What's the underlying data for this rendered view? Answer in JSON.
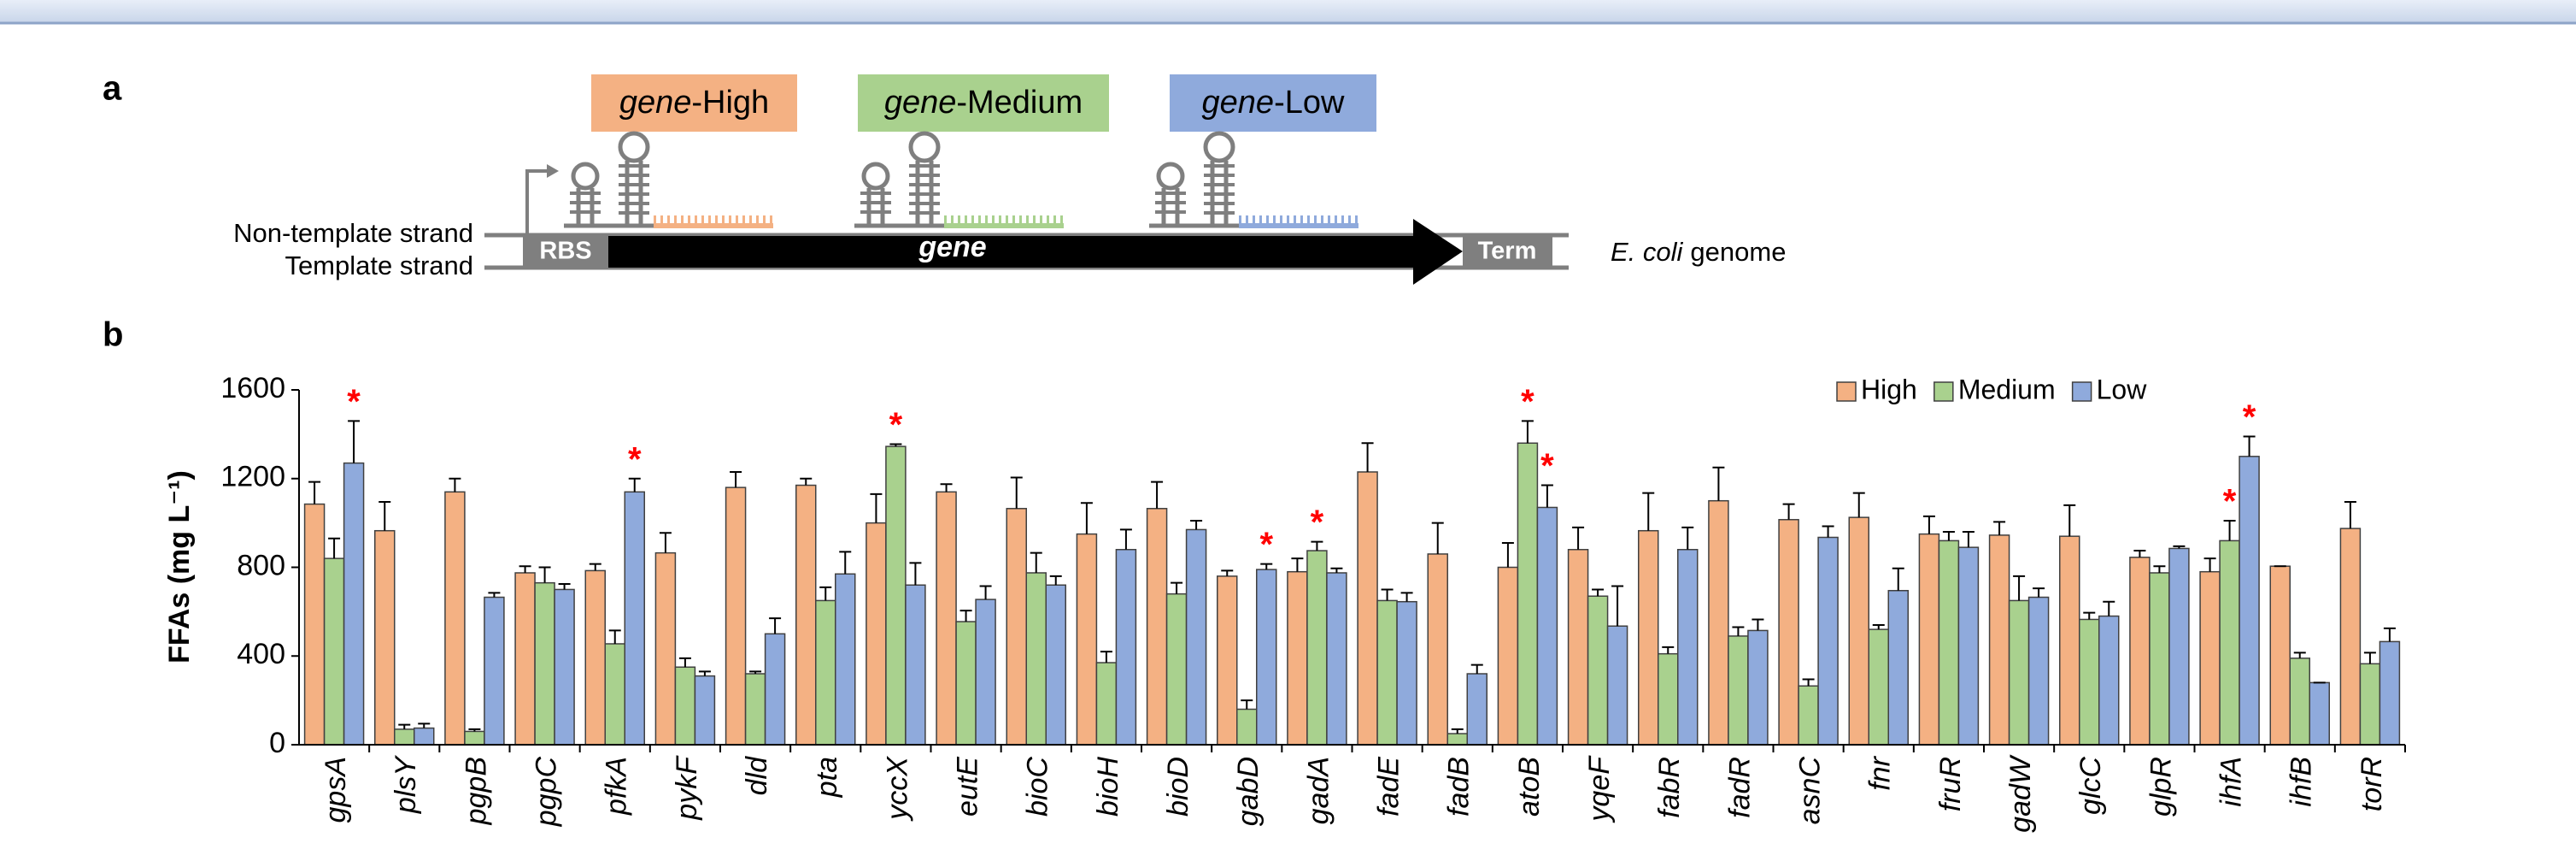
{
  "diagram": {
    "panel_label": "a",
    "boxes": [
      {
        "italic": "gene",
        "rest": "-High",
        "color": "#f4b183"
      },
      {
        "italic": "gene",
        "rest": "-Medium",
        "color": "#a9d18e"
      },
      {
        "italic": "gene",
        "rest": "-Low",
        "color": "#8faadc"
      }
    ],
    "strands": [
      "Non-template strand",
      "Template strand"
    ],
    "rbs": "RBS",
    "gene": "gene",
    "term": "Term",
    "genome_italic": "E. coli",
    "genome_rest": "genome"
  },
  "chart_data": {
    "type": "bar",
    "panel_label": "b",
    "y_label": "FFAs (mg L⁻¹)",
    "categories": [
      "gpsA",
      "plsY",
      "pgpB",
      "pgpC",
      "pfkA",
      "pykF",
      "dld",
      "pta",
      "yccX",
      "eutE",
      "bioC",
      "bioH",
      "bioD",
      "gabD",
      "gadA",
      "fadE",
      "fadB",
      "atoB",
      "yqeF",
      "fabR",
      "fadR",
      "asnC",
      "fnr",
      "fruR",
      "gadW",
      "glcC",
      "glpR",
      "ihfA",
      "ihfB",
      "torR"
    ],
    "series": [
      {
        "name": "High",
        "color": "#f4b183",
        "values": [
          1085,
          965,
          1140,
          775,
          785,
          865,
          1160,
          1170,
          1000,
          1140,
          1065,
          950,
          1065,
          760,
          780,
          1230,
          860,
          800,
          880,
          965,
          1100,
          1015,
          1025,
          950,
          945,
          940,
          845,
          780,
          805,
          975
        ],
        "errors": [
          100,
          130,
          60,
          30,
          30,
          90,
          70,
          30,
          130,
          35,
          140,
          140,
          120,
          25,
          60,
          130,
          140,
          110,
          100,
          170,
          150,
          70,
          110,
          80,
          60,
          140,
          30,
          60,
          0,
          120
        ]
      },
      {
        "name": "Medium",
        "color": "#a9d18e",
        "values": [
          840,
          70,
          60,
          730,
          455,
          350,
          320,
          650,
          1345,
          555,
          775,
          370,
          680,
          160,
          875,
          650,
          50,
          1360,
          670,
          410,
          490,
          265,
          520,
          920,
          650,
          565,
          775,
          920,
          390,
          365
        ],
        "errors": [
          90,
          20,
          10,
          70,
          60,
          40,
          10,
          60,
          10,
          50,
          90,
          50,
          50,
          40,
          40,
          50,
          20,
          100,
          30,
          30,
          40,
          30,
          20,
          40,
          110,
          30,
          30,
          90,
          25,
          50
        ]
      },
      {
        "name": "Low",
        "color": "#8faadc",
        "values": [
          1270,
          75,
          665,
          700,
          1140,
          310,
          500,
          770,
          720,
          655,
          720,
          880,
          970,
          790,
          775,
          645,
          320,
          1070,
          535,
          880,
          515,
          935,
          695,
          890,
          665,
          580,
          885,
          1300,
          280,
          465
        ],
        "errors": [
          190,
          20,
          20,
          25,
          60,
          20,
          70,
          100,
          100,
          60,
          40,
          90,
          40,
          25,
          20,
          40,
          40,
          100,
          180,
          100,
          50,
          50,
          100,
          70,
          40,
          65,
          10,
          90,
          0,
          60
        ]
      }
    ],
    "annotations": [
      {
        "text": "*",
        "category": "gpsA",
        "series": "Low"
      },
      {
        "text": "*",
        "category": "pfkA",
        "series": "Low"
      },
      {
        "text": "*",
        "category": "yccX",
        "series": "Medium"
      },
      {
        "text": "*",
        "category": "gabD",
        "series": "Low"
      },
      {
        "text": "*",
        "category": "gadA",
        "series": "Medium"
      },
      {
        "text": "*",
        "category": "atoB",
        "series": "Medium"
      },
      {
        "text": "*",
        "category": "atoB",
        "series": "Low"
      },
      {
        "text": "*",
        "category": "ihfA",
        "series": "Medium"
      },
      {
        "text": "*",
        "category": "ihfA",
        "series": "Low"
      }
    ],
    "annotation_color": "#ff0000",
    "ylim": [
      0,
      1600
    ],
    "yticks": [
      0,
      400,
      800,
      1200,
      1600
    ],
    "grid": false,
    "legend": "top-right"
  }
}
